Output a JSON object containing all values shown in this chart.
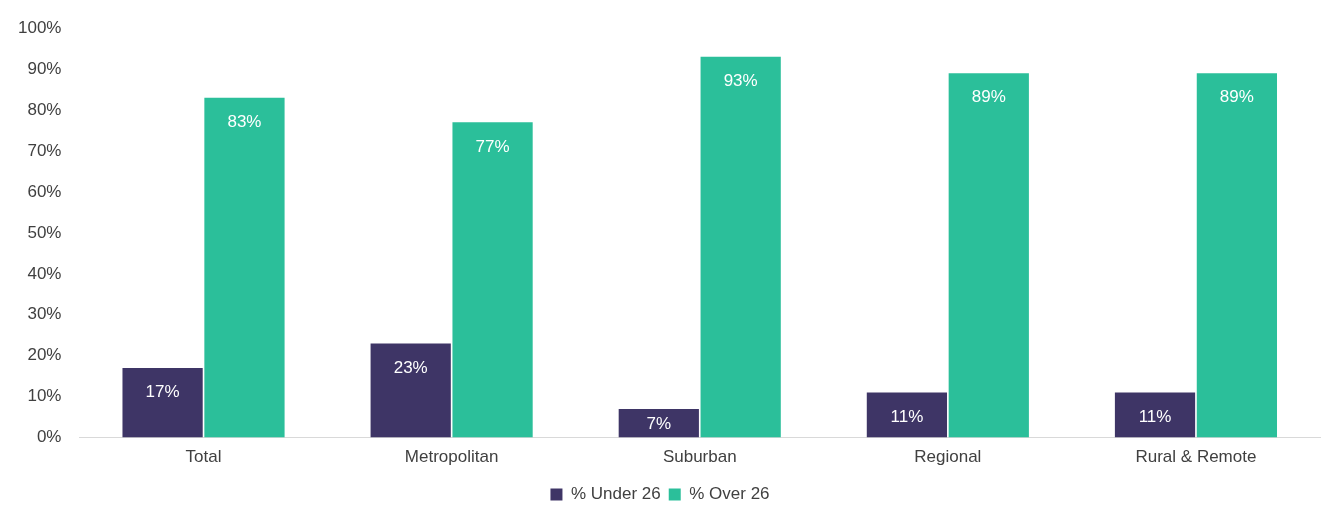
{
  "chart_data": {
    "type": "bar",
    "categories": [
      "Total",
      "Metropolitan",
      "Suburban",
      "Regional",
      "Rural & Remote"
    ],
    "series": [
      {
        "name": "% Under 26",
        "color": "#3e3566",
        "values": [
          17,
          23,
          7,
          11,
          11
        ],
        "value_labels": [
          "17%",
          "23%",
          "7%",
          "11%",
          "11%"
        ]
      },
      {
        "name": "% Over 26",
        "color": "#2bbf9a",
        "values": [
          83,
          77,
          93,
          89,
          89
        ],
        "value_labels": [
          "83%",
          "77%",
          "93%",
          "89%",
          "89%"
        ]
      }
    ],
    "ylim": [
      0,
      100
    ],
    "yticks": [
      {
        "value": 0,
        "label": "0%"
      },
      {
        "value": 10,
        "label": "10%"
      },
      {
        "value": 20,
        "label": "20%"
      },
      {
        "value": 30,
        "label": "30%"
      },
      {
        "value": 40,
        "label": "40%"
      },
      {
        "value": 50,
        "label": "50%"
      },
      {
        "value": 60,
        "label": "60%"
      },
      {
        "value": 70,
        "label": "70%"
      },
      {
        "value": 80,
        "label": "80%"
      },
      {
        "value": 90,
        "label": "90%"
      },
      {
        "value": 100,
        "label": "100%"
      }
    ],
    "grid": false,
    "legend": "bottom"
  }
}
